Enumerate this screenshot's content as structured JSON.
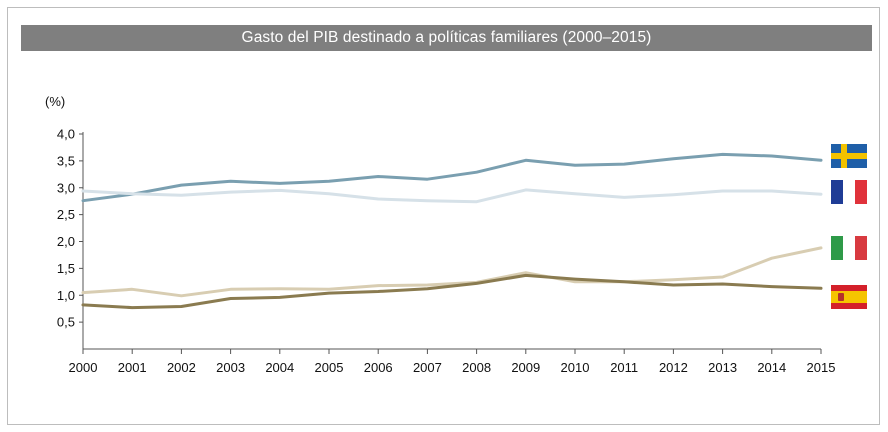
{
  "chart_data": {
    "type": "line",
    "title": "Gasto del PIB destinado a políticas familiares (2000–2015)",
    "unit_label": "(%)",
    "x": [
      "2000",
      "2001",
      "2002",
      "2003",
      "2004",
      "2005",
      "2006",
      "2007",
      "2008",
      "2009",
      "2010",
      "2011",
      "2012",
      "2013",
      "2014",
      "2015"
    ],
    "y_ticks": [
      "4,0",
      "3,5",
      "3,0",
      "2,5",
      "2,0",
      "1,5",
      "1,0",
      "0,5"
    ],
    "ylim": [
      0,
      4.0
    ],
    "grid": false,
    "legend": "flags-right",
    "series": [
      {
        "flag": "sweden-flag-icon",
        "color": "#7a9fb0",
        "values": [
          2.76,
          2.88,
          3.05,
          3.12,
          3.08,
          3.12,
          3.21,
          3.16,
          3.29,
          3.51,
          3.42,
          3.44,
          3.54,
          3.62,
          3.59,
          3.51
        ]
      },
      {
        "flag": "france-flag-icon",
        "color": "#d6e1e8",
        "values": [
          2.94,
          2.89,
          2.86,
          2.92,
          2.95,
          2.89,
          2.79,
          2.76,
          2.74,
          2.96,
          2.89,
          2.82,
          2.87,
          2.94,
          2.94,
          2.88
        ]
      },
      {
        "flag": "italy-flag-icon",
        "color": "#d8cdb2",
        "values": [
          1.05,
          1.11,
          0.99,
          1.11,
          1.12,
          1.11,
          1.18,
          1.19,
          1.24,
          1.42,
          1.25,
          1.25,
          1.29,
          1.34,
          1.69,
          1.88
        ]
      },
      {
        "flag": "spain-flag-icon",
        "color": "#8a7b50",
        "values": [
          0.82,
          0.77,
          0.79,
          0.94,
          0.96,
          1.04,
          1.07,
          1.12,
          1.22,
          1.37,
          1.3,
          1.25,
          1.19,
          1.21,
          1.16,
          1.13
        ]
      }
    ],
    "colors": {
      "title_bar": "#7f7f7f",
      "axis": "#555555"
    }
  }
}
